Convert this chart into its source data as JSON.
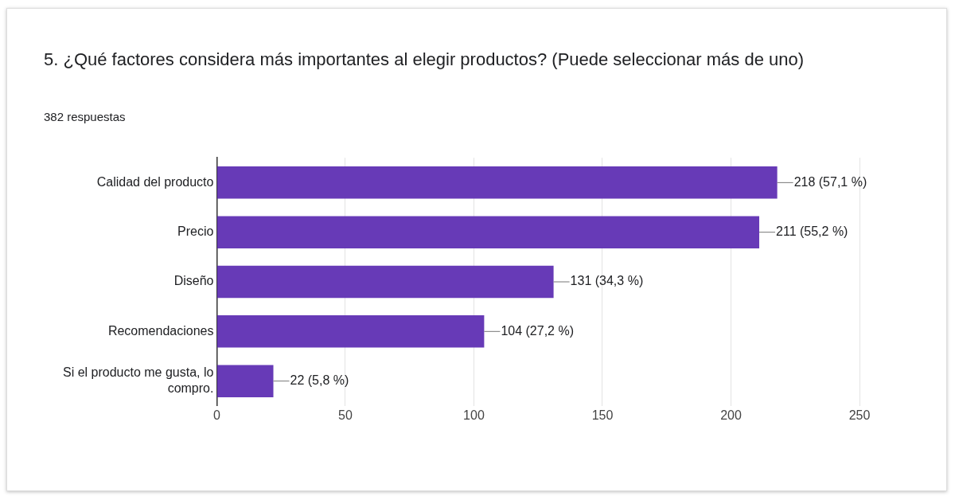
{
  "chart_data": {
    "type": "bar",
    "orientation": "horizontal",
    "title": "5.  ¿Qué factores considera más importantes al elegir productos? (Puede seleccionar más de uno)",
    "subtitle": "382 respuestas",
    "categories": [
      "Calidad del producto",
      "Precio",
      "Diseño",
      "Recomendaciones",
      "Si el producto me gusta, lo compro."
    ],
    "values": [
      218,
      211,
      131,
      104,
      22
    ],
    "value_labels": [
      "218 (57,1 %)",
      "211 (55,2 %)",
      "131 (34,3 %)",
      "104 (27,2 %)",
      "22 (5,8 %)"
    ],
    "color": "#673ab7",
    "xlim": [
      0,
      250
    ],
    "xticks": [
      0,
      50,
      100,
      150,
      200,
      250
    ],
    "grid": "x",
    "legend": false
  }
}
